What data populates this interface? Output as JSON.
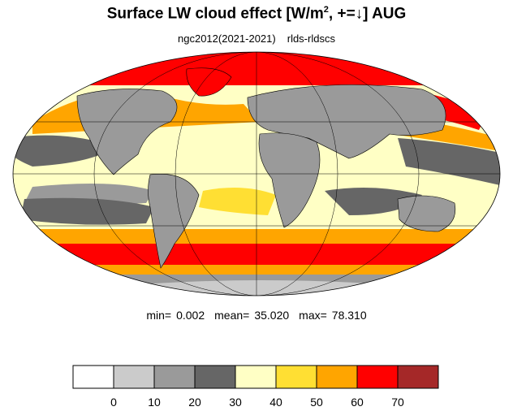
{
  "header": {
    "title_main": "Surface LW cloud effect [W/m",
    "title_sup": "2",
    "title_tail": ", +=↓]  AUG",
    "subtitle_left": "ngc2012(2021-2021)",
    "subtitle_right": "rlds-rldscs"
  },
  "stats": {
    "min_label": "min=",
    "min_value": "0.002",
    "mean_label": "mean=",
    "mean_value": "35.020",
    "max_label": "max=",
    "max_value": "78.310"
  },
  "colorbar": {
    "colors": [
      "#ffffff",
      "#cbcbcb",
      "#9a9a9a",
      "#666666",
      "#ffffc5",
      "#ffdf33",
      "#ffa500",
      "#ff0000",
      "#a52828"
    ],
    "tick_labels": [
      "0",
      "10",
      "20",
      "30",
      "40",
      "50",
      "60",
      "70"
    ],
    "tick_values": [
      0,
      10,
      20,
      30,
      40,
      50,
      60,
      70
    ]
  },
  "map": {
    "projection": "mollweide",
    "ocean_base_color": "#ffffc5",
    "land_color": "#9a9a9a",
    "coastline_color": "#000000",
    "gridline_color": "#000000"
  }
}
